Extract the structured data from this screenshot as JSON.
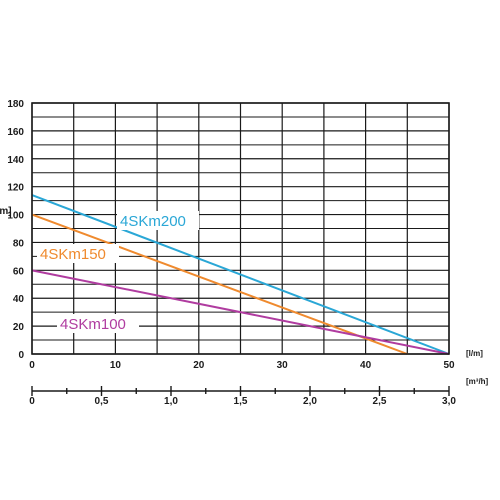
{
  "chart_data": {
    "type": "line",
    "y_axis": {
      "label": "[m]",
      "range": [
        0,
        180
      ],
      "ticks": [
        "0",
        "20",
        "40",
        "60",
        "80",
        "100",
        "120",
        "140",
        "160",
        "180"
      ]
    },
    "x_axis_primary": {
      "unit": "[l/m]",
      "range": [
        0,
        50
      ],
      "ticks": [
        "0",
        "10",
        "20",
        "30",
        "40",
        "50"
      ]
    },
    "x_axis_secondary": {
      "unit": "[m³/h]",
      "range": [
        0,
        3.0
      ],
      "ticks": [
        "0",
        "0,5",
        "1,0",
        "1,5",
        "2,0",
        "2,5",
        "3,0"
      ]
    },
    "grid": true,
    "series": [
      {
        "name": "4SKm200",
        "color": "#2aa7d6",
        "x": [
          0,
          50
        ],
        "y": [
          114,
          0
        ]
      },
      {
        "name": "4SKm150",
        "color": "#ef8a2e",
        "x": [
          0,
          45
        ],
        "y": [
          100,
          0
        ]
      },
      {
        "name": "4SKm100",
        "color": "#b03ca0",
        "x": [
          0,
          50
        ],
        "y": [
          60,
          0
        ]
      }
    ]
  }
}
